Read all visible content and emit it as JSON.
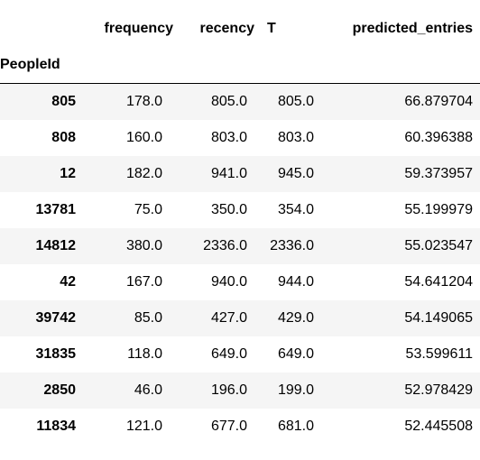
{
  "table": {
    "columns": [
      "frequency",
      "recency",
      "T",
      "predicted_entries"
    ],
    "index_name": "PeopleId",
    "rows": [
      {
        "id": "805",
        "frequency": "178.0",
        "recency": "805.0",
        "T": "805.0",
        "predicted_entries": "66.879704"
      },
      {
        "id": "808",
        "frequency": "160.0",
        "recency": "803.0",
        "T": "803.0",
        "predicted_entries": "60.396388"
      },
      {
        "id": "12",
        "frequency": "182.0",
        "recency": "941.0",
        "T": "945.0",
        "predicted_entries": "59.373957"
      },
      {
        "id": "13781",
        "frequency": "75.0",
        "recency": "350.0",
        "T": "354.0",
        "predicted_entries": "55.199979"
      },
      {
        "id": "14812",
        "frequency": "380.0",
        "recency": "2336.0",
        "T": "2336.0",
        "predicted_entries": "55.023547"
      },
      {
        "id": "42",
        "frequency": "167.0",
        "recency": "940.0",
        "T": "944.0",
        "predicted_entries": "54.641204"
      },
      {
        "id": "39742",
        "frequency": "85.0",
        "recency": "427.0",
        "T": "429.0",
        "predicted_entries": "54.149065"
      },
      {
        "id": "31835",
        "frequency": "118.0",
        "recency": "649.0",
        "T": "649.0",
        "predicted_entries": "53.599611"
      },
      {
        "id": "2850",
        "frequency": "46.0",
        "recency": "196.0",
        "T": "199.0",
        "predicted_entries": "52.978429"
      },
      {
        "id": "11834",
        "frequency": "121.0",
        "recency": "677.0",
        "T": "681.0",
        "predicted_entries": "52.445508"
      }
    ]
  }
}
